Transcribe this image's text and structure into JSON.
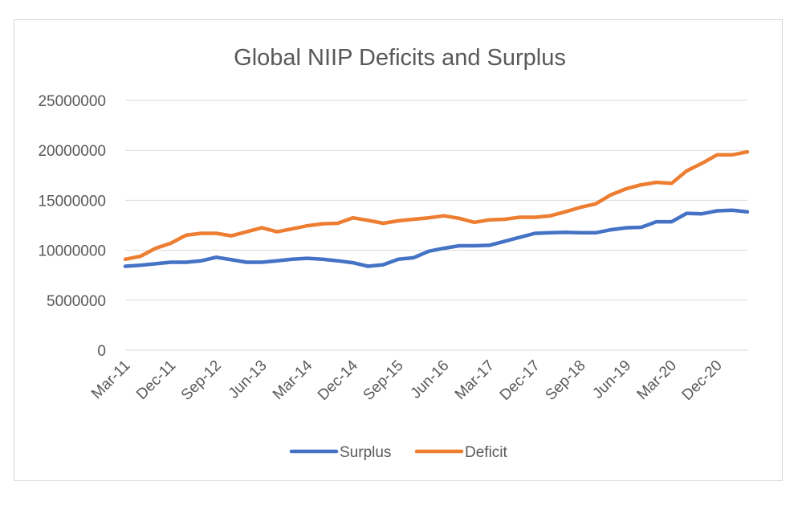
{
  "chart_data": {
    "type": "line",
    "title": "Global NIIP Deficits and Surplus",
    "xlabel": "",
    "ylabel": "",
    "ylim": [
      0,
      25000000
    ],
    "yticks": [
      0,
      5000000,
      10000000,
      15000000,
      20000000,
      25000000
    ],
    "ytick_labels": [
      "0",
      "5000000",
      "10000000",
      "15000000",
      "20000000",
      "25000000"
    ],
    "x": [
      "Mar-11",
      "Jun-11",
      "Sep-11",
      "Dec-11",
      "Mar-12",
      "Jun-12",
      "Sep-12",
      "Dec-12",
      "Mar-13",
      "Jun-13",
      "Sep-13",
      "Dec-13",
      "Mar-14",
      "Jun-14",
      "Sep-14",
      "Dec-14",
      "Mar-15",
      "Jun-15",
      "Sep-15",
      "Dec-15",
      "Mar-16",
      "Jun-16",
      "Sep-16",
      "Dec-16",
      "Mar-17",
      "Jun-17",
      "Sep-17",
      "Dec-17",
      "Mar-18",
      "Jun-18",
      "Sep-18",
      "Dec-18",
      "Mar-19",
      "Jun-19",
      "Sep-19",
      "Dec-19",
      "Mar-20",
      "Jun-20",
      "Sep-20",
      "Dec-20",
      "Mar-21",
      "Jun-21"
    ],
    "x_tick_labels": [
      "Mar-11",
      "Dec-11",
      "Sep-12",
      "Jun-13",
      "Mar-14",
      "Dec-14",
      "Sep-15",
      "Jun-16",
      "Mar-17",
      "Dec-17",
      "Sep-18",
      "Jun-19",
      "Mar-20",
      "Dec-20"
    ],
    "grid": true,
    "legend_position": "bottom",
    "series": [
      {
        "name": "Surplus",
        "color": "#4472c4",
        "values": [
          8400000,
          8500000,
          8650000,
          8800000,
          8800000,
          8950000,
          9300000,
          9050000,
          8800000,
          8800000,
          8950000,
          9100000,
          9200000,
          9100000,
          8950000,
          8750000,
          8400000,
          8550000,
          9100000,
          9250000,
          9900000,
          10200000,
          10450000,
          10450000,
          10500000,
          10900000,
          11300000,
          11700000,
          11750000,
          11800000,
          11750000,
          11750000,
          12050000,
          12250000,
          12300000,
          12850000,
          12850000,
          13700000,
          13650000,
          13950000,
          14000000,
          13850000
        ]
      },
      {
        "name": "Deficit",
        "color": "#ed7d31",
        "values": [
          9100000,
          9400000,
          10200000,
          10700000,
          11500000,
          11700000,
          11700000,
          11450000,
          11850000,
          12250000,
          11850000,
          12150000,
          12450000,
          12650000,
          12700000,
          13250000,
          13000000,
          12700000,
          12950000,
          13100000,
          13250000,
          13450000,
          13200000,
          12800000,
          13050000,
          13100000,
          13300000,
          13300000,
          13450000,
          13850000,
          14300000,
          14650000,
          15550000,
          16150000,
          16550000,
          16800000,
          16700000,
          17950000,
          18700000,
          19550000,
          19550000,
          19850000
        ]
      }
    ]
  }
}
